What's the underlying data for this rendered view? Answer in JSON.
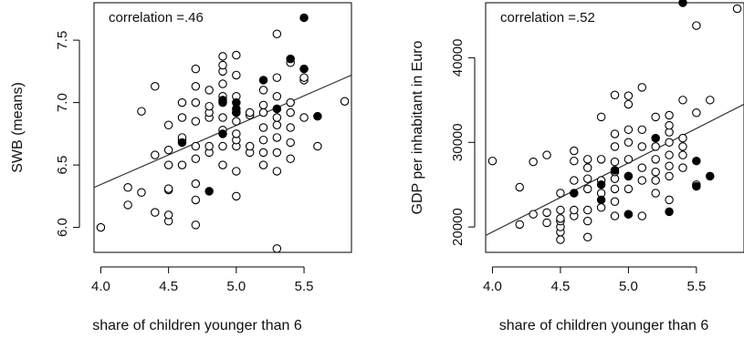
{
  "chart_data": [
    {
      "type": "scatter",
      "annotation": "correlation =.46",
      "xlabel": "share of children younger than 6",
      "ylabel": "SWB (means)",
      "xlim": [
        3.95,
        5.85
      ],
      "ylim": [
        5.8,
        7.8
      ],
      "xticks": [
        4.0,
        4.5,
        5.0,
        5.5
      ],
      "xtick_labels": [
        "4.0",
        "4.5",
        "5.0",
        "5.5"
      ],
      "yticks": [
        6.0,
        6.5,
        7.0,
        7.5
      ],
      "ytick_labels": [
        "6.0",
        "6.5",
        "7.0",
        "7.5"
      ],
      "regression_line": {
        "x": [
          3.95,
          5.85
        ],
        "y": [
          6.32,
          7.22
        ]
      },
      "series": [
        {
          "marker": "open-circle",
          "points": [
            [
              4.0,
              6.0
            ],
            [
              4.2,
              6.18
            ],
            [
              4.2,
              6.32
            ],
            [
              4.3,
              6.28
            ],
            [
              4.3,
              6.93
            ],
            [
              4.4,
              6.12
            ],
            [
              4.4,
              6.58
            ],
            [
              4.4,
              7.13
            ],
            [
              4.5,
              6.05
            ],
            [
              4.5,
              6.1
            ],
            [
              4.5,
              6.3
            ],
            [
              4.5,
              6.31
            ],
            [
              4.5,
              6.5
            ],
            [
              4.5,
              6.62
            ],
            [
              4.5,
              6.82
            ],
            [
              4.6,
              6.5
            ],
            [
              4.6,
              6.7
            ],
            [
              4.6,
              6.88
            ],
            [
              4.6,
              7.0
            ],
            [
              4.6,
              6.72
            ],
            [
              4.7,
              6.02
            ],
            [
              4.7,
              6.22
            ],
            [
              4.7,
              6.35
            ],
            [
              4.7,
              6.55
            ],
            [
              4.7,
              6.65
            ],
            [
              4.7,
              6.85
            ],
            [
              4.7,
              7.0
            ],
            [
              4.7,
              7.13
            ],
            [
              4.7,
              7.27
            ],
            [
              4.8,
              6.6
            ],
            [
              4.8,
              6.65
            ],
            [
              4.8,
              6.88
            ],
            [
              4.8,
              6.92
            ],
            [
              4.8,
              6.97
            ],
            [
              4.8,
              7.1
            ],
            [
              4.9,
              6.5
            ],
            [
              4.9,
              6.65
            ],
            [
              4.9,
              6.78
            ],
            [
              4.9,
              6.88
            ],
            [
              4.9,
              7.05
            ],
            [
              4.9,
              7.15
            ],
            [
              4.9,
              7.25
            ],
            [
              4.9,
              7.3
            ],
            [
              4.9,
              7.37
            ],
            [
              5.0,
              6.25
            ],
            [
              5.0,
              6.45
            ],
            [
              5.0,
              6.65
            ],
            [
              5.0,
              6.7
            ],
            [
              5.0,
              6.75
            ],
            [
              5.0,
              6.85
            ],
            [
              5.0,
              6.92
            ],
            [
              5.0,
              7.05
            ],
            [
              5.0,
              7.22
            ],
            [
              5.0,
              7.38
            ],
            [
              5.1,
              6.6
            ],
            [
              5.1,
              6.65
            ],
            [
              5.1,
              6.9
            ],
            [
              5.1,
              6.92
            ],
            [
              5.2,
              6.5
            ],
            [
              5.2,
              6.6
            ],
            [
              5.2,
              6.7
            ],
            [
              5.2,
              6.8
            ],
            [
              5.2,
              6.92
            ],
            [
              5.2,
              6.98
            ],
            [
              5.2,
              7.1
            ],
            [
              5.3,
              5.83
            ],
            [
              5.3,
              6.45
            ],
            [
              5.3,
              6.6
            ],
            [
              5.3,
              6.72
            ],
            [
              5.3,
              6.82
            ],
            [
              5.3,
              6.88
            ],
            [
              5.3,
              6.95
            ],
            [
              5.3,
              7.05
            ],
            [
              5.3,
              7.2
            ],
            [
              5.3,
              7.55
            ],
            [
              5.4,
              6.55
            ],
            [
              5.4,
              6.68
            ],
            [
              5.4,
              6.8
            ],
            [
              5.4,
              6.92
            ],
            [
              5.4,
              7.0
            ],
            [
              5.4,
              7.32
            ],
            [
              5.5,
              6.88
            ],
            [
              5.5,
              7.18
            ],
            [
              5.5,
              7.2
            ],
            [
              5.6,
              6.65
            ],
            [
              5.8,
              7.01
            ]
          ]
        },
        {
          "marker": "filled-circle",
          "points": [
            [
              4.6,
              6.68
            ],
            [
              4.8,
              6.29
            ],
            [
              4.9,
              6.75
            ],
            [
              4.9,
              7.0
            ],
            [
              4.9,
              7.02
            ],
            [
              5.0,
              6.92
            ],
            [
              5.0,
              6.95
            ],
            [
              5.0,
              7.0
            ],
            [
              5.2,
              7.18
            ],
            [
              5.3,
              6.95
            ],
            [
              5.4,
              7.35
            ],
            [
              5.5,
              7.27
            ],
            [
              5.5,
              7.68
            ],
            [
              5.6,
              6.89
            ]
          ]
        }
      ]
    },
    {
      "type": "scatter",
      "annotation": "correlation =.52",
      "xlabel": "share of children younger than 6",
      "ylabel": "GDP per inhabitant in Euro",
      "xlim": [
        3.95,
        5.85
      ],
      "ylim": [
        17000,
        46500
      ],
      "xticks": [
        4.0,
        4.5,
        5.0,
        5.5
      ],
      "xtick_labels": [
        "4.0",
        "4.5",
        "5.0",
        "5.5"
      ],
      "yticks": [
        20000,
        30000,
        40000
      ],
      "ytick_labels": [
        "20000",
        "30000",
        "40000"
      ],
      "regression_line": {
        "x": [
          3.95,
          5.85
        ],
        "y": [
          19000,
          34500
        ]
      },
      "series": [
        {
          "marker": "open-circle",
          "points": [
            [
              4.0,
              27800
            ],
            [
              4.2,
              20300
            ],
            [
              4.2,
              24700
            ],
            [
              4.3,
              21500
            ],
            [
              4.3,
              27700
            ],
            [
              4.4,
              20500
            ],
            [
              4.4,
              21700
            ],
            [
              4.4,
              28500
            ],
            [
              4.5,
              18500
            ],
            [
              4.5,
              19400
            ],
            [
              4.5,
              20000
            ],
            [
              4.5,
              20700
            ],
            [
              4.5,
              21000
            ],
            [
              4.5,
              22000
            ],
            [
              4.5,
              24000
            ],
            [
              4.6,
              21300
            ],
            [
              4.6,
              22000
            ],
            [
              4.6,
              25500
            ],
            [
              4.6,
              27800
            ],
            [
              4.6,
              29000
            ],
            [
              4.7,
              18800
            ],
            [
              4.7,
              20700
            ],
            [
              4.7,
              22000
            ],
            [
              4.7,
              24500
            ],
            [
              4.7,
              25700
            ],
            [
              4.7,
              27000
            ],
            [
              4.7,
              28000
            ],
            [
              4.8,
              22300
            ],
            [
              4.8,
              24000
            ],
            [
              4.8,
              25500
            ],
            [
              4.8,
              28000
            ],
            [
              4.8,
              33000
            ],
            [
              4.9,
              21300
            ],
            [
              4.9,
              23000
            ],
            [
              4.9,
              24500
            ],
            [
              4.9,
              25700
            ],
            [
              4.9,
              26500
            ],
            [
              4.9,
              27700
            ],
            [
              4.9,
              29500
            ],
            [
              4.9,
              31000
            ],
            [
              4.9,
              35600
            ],
            [
              5.0,
              21500
            ],
            [
              5.0,
              24500
            ],
            [
              5.0,
              26000
            ],
            [
              5.0,
              28000
            ],
            [
              5.0,
              30000
            ],
            [
              5.0,
              31500
            ],
            [
              5.0,
              34500
            ],
            [
              5.0,
              35500
            ],
            [
              5.1,
              21300
            ],
            [
              5.1,
              25500
            ],
            [
              5.1,
              27000
            ],
            [
              5.1,
              29500
            ],
            [
              5.1,
              31500
            ],
            [
              5.1,
              36500
            ],
            [
              5.2,
              24000
            ],
            [
              5.2,
              25500
            ],
            [
              5.2,
              26500
            ],
            [
              5.2,
              28000
            ],
            [
              5.2,
              29500
            ],
            [
              5.2,
              33000
            ],
            [
              5.3,
              23200
            ],
            [
              5.3,
              26000
            ],
            [
              5.3,
              27200
            ],
            [
              5.3,
              28500
            ],
            [
              5.3,
              30000
            ],
            [
              5.3,
              31200
            ],
            [
              5.3,
              32000
            ],
            [
              5.3,
              33200
            ],
            [
              5.4,
              27000
            ],
            [
              5.4,
              28500
            ],
            [
              5.4,
              29500
            ],
            [
              5.4,
              30500
            ],
            [
              5.4,
              35000
            ],
            [
              5.5,
              25000
            ],
            [
              5.5,
              33500
            ],
            [
              5.5,
              43800
            ],
            [
              5.6,
              35000
            ],
            [
              5.8,
              45800
            ]
          ]
        },
        {
          "marker": "filled-circle",
          "points": [
            [
              4.6,
              24000
            ],
            [
              4.8,
              23200
            ],
            [
              4.8,
              25000
            ],
            [
              4.9,
              26700
            ],
            [
              5.0,
              21500
            ],
            [
              5.0,
              26000
            ],
            [
              5.2,
              30500
            ],
            [
              5.3,
              21800
            ],
            [
              5.4,
              46500
            ],
            [
              5.5,
              24800
            ],
            [
              5.5,
              27800
            ],
            [
              5.6,
              26000
            ]
          ]
        }
      ]
    }
  ]
}
